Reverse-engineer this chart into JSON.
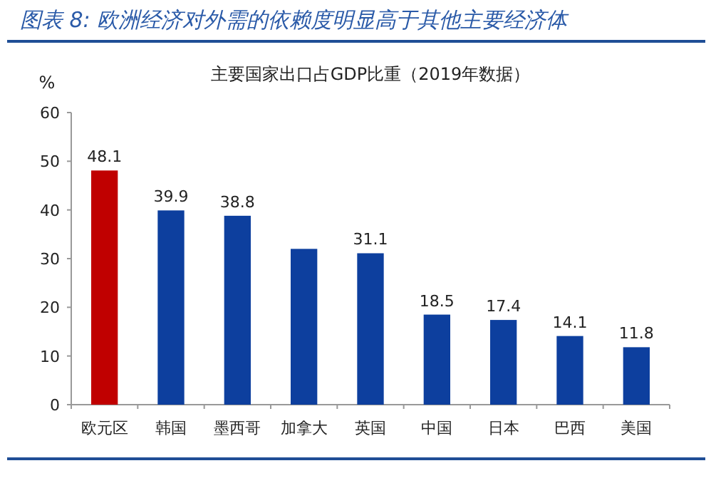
{
  "chart_data": {
    "type": "bar",
    "title": "图表 8: 欧洲经济对外需的依赖度明显高于其他主要经济体",
    "subtitle": "主要国家出口占GDP比重（2019年数据）",
    "ylabel": "%",
    "categories": [
      "欧元区",
      "韩国",
      "墨西哥",
      "加拿大",
      "英国",
      "中国",
      "日本",
      "巴西",
      "美国"
    ],
    "values": [
      48.1,
      39.9,
      38.8,
      32,
      31.1,
      18.5,
      17.4,
      14.1,
      11.8
    ],
    "colors": [
      "#c00000",
      "#0d3f9e",
      "#0d3f9e",
      "#0d3f9e",
      "#0d3f9e",
      "#0d3f9e",
      "#0d3f9e",
      "#0d3f9e",
      "#0d3f9e"
    ],
    "value_labels": [
      "48.1",
      "39.9",
      "38.8",
      null,
      "31.1",
      "18.5",
      "17.4",
      "14.1",
      "11.8"
    ],
    "ylim": [
      0,
      60
    ],
    "yticks": [
      0,
      10,
      20,
      30,
      40,
      50,
      60
    ],
    "grid": false
  }
}
